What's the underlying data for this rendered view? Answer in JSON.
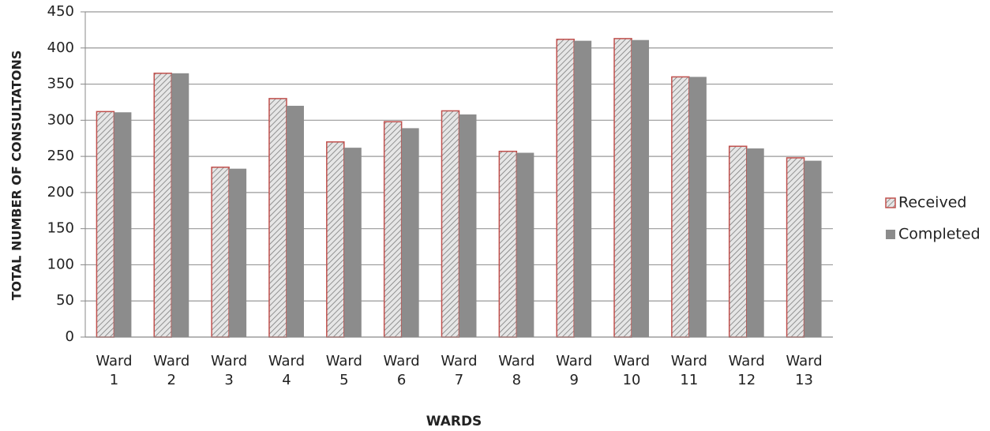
{
  "chart_data": {
    "type": "bar",
    "x_label": "WARDS",
    "y_label": "TOTAL NUMBER OF CONSULTATONS",
    "categories": [
      "Ward 1",
      "Ward 2",
      "Ward 3",
      "Ward 4",
      "Ward 5",
      "Ward 6",
      "Ward 7",
      "Ward 8",
      "Ward 9",
      "Ward 10",
      "Ward 11",
      "Ward 12",
      "Ward 13"
    ],
    "series": [
      {
        "name": "Received",
        "color": "#c0504d",
        "values": [
          312,
          365,
          235,
          330,
          270,
          298,
          313,
          257,
          412,
          413,
          360,
          264,
          248
        ]
      },
      {
        "name": "Completed",
        "color": "#8c8c8c",
        "values": [
          311,
          365,
          233,
          320,
          262,
          289,
          308,
          255,
          410,
          411,
          360,
          261,
          244
        ]
      }
    ],
    "ylim": [
      0,
      450
    ],
    "yticks": [
      0,
      50,
      100,
      150,
      200,
      250,
      300,
      350,
      400,
      450
    ],
    "grid": true,
    "legend": "right"
  }
}
